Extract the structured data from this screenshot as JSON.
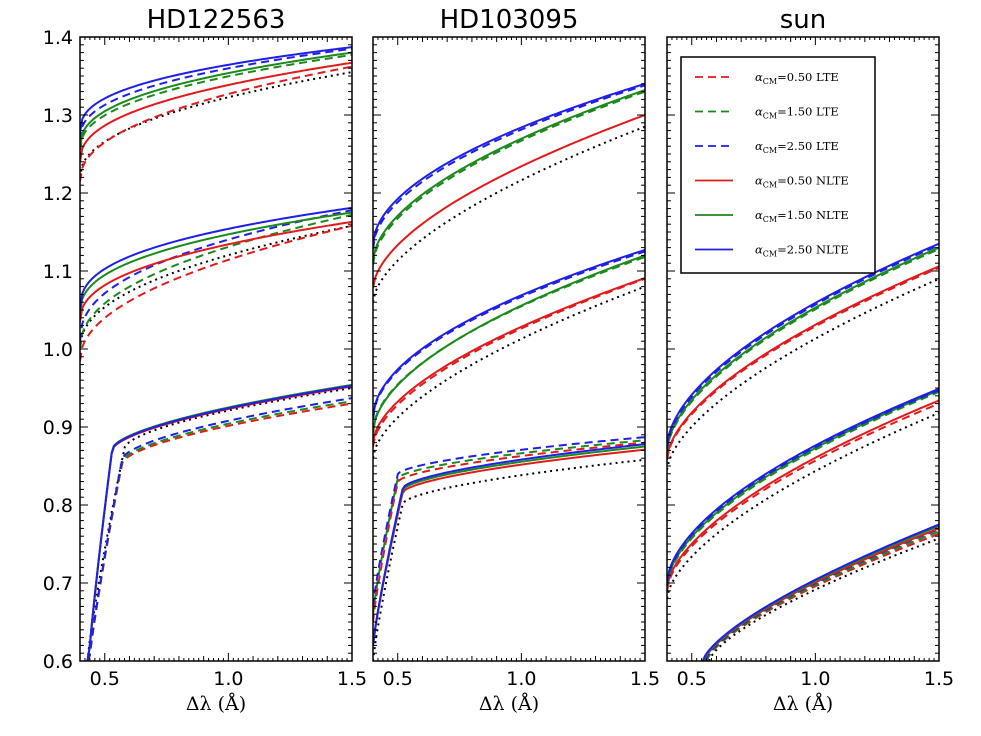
{
  "chart_data": {
    "type": "line",
    "y_tick_labels": [
      "0.6",
      "0.7",
      "0.8",
      "0.9",
      "1.0",
      "1.1",
      "1.2",
      "1.3",
      "1.4"
    ],
    "x_tick_labels": [
      "0.5",
      "1.0",
      "1.5"
    ],
    "xlabel": "Δλ (Å)",
    "xlim": [
      0.4,
      1.5
    ],
    "ylim": [
      0.6,
      1.4
    ],
    "colors": {
      "0.50": "#e31a1c",
      "1.50": "#1a8a1a",
      "2.50": "#1f1fe8",
      "reference": "#000000"
    },
    "legend": [
      {
        "alpha": "0.50",
        "kind": "LTE",
        "text": "0.50 LTE",
        "symbol": "α",
        "subscript": "CM"
      },
      {
        "alpha": "1.50",
        "kind": "LTE",
        "text": "1.50 LTE",
        "symbol": "α",
        "subscript": "CM"
      },
      {
        "alpha": "2.50",
        "kind": "LTE",
        "text": "2.50 LTE",
        "symbol": "α",
        "subscript": "CM"
      },
      {
        "alpha": "0.50",
        "kind": "NLTE",
        "text": "0.50 NLTE",
        "symbol": "α",
        "subscript": "CM"
      },
      {
        "alpha": "1.50",
        "kind": "NLTE",
        "text": "1.50 NLTE",
        "symbol": "α",
        "subscript": "CM"
      },
      {
        "alpha": "2.50",
        "kind": "NLTE",
        "text": "2.50 NLTE",
        "symbol": "α",
        "subscript": "CM"
      }
    ],
    "panels": [
      {
        "title": "HD122563",
        "groups": [
          {
            "lines": {
              "ref": {
                "start": 1.22,
                "end": 1.355,
                "k": 0.45
              },
              "0.50_LTE": {
                "start": 1.215,
                "end": 1.362,
                "k": 0.45
              },
              "1.50_LTE": {
                "start": 1.255,
                "end": 1.377,
                "k": 0.42
              },
              "2.50_LTE": {
                "start": 1.268,
                "end": 1.385,
                "k": 0.4
              },
              "0.50_NLTE": {
                "start": 1.24,
                "end": 1.367,
                "k": 0.42
              },
              "1.50_NLTE": {
                "start": 1.258,
                "end": 1.38,
                "k": 0.4
              },
              "2.50_NLTE": {
                "start": 1.277,
                "end": 1.387,
                "k": 0.38
              }
            }
          },
          {
            "lines": {
              "ref": {
                "start": 1.0,
                "end": 1.158,
                "k": 0.45
              },
              "0.50_LTE": {
                "start": 0.985,
                "end": 1.158,
                "k": 0.48
              },
              "1.50_LTE": {
                "start": 1.0,
                "end": 1.172,
                "k": 0.45
              },
              "2.50_LTE": {
                "start": 1.01,
                "end": 1.178,
                "k": 0.42
              },
              "0.50_NLTE": {
                "start": 1.035,
                "end": 1.163,
                "k": 0.42
              },
              "1.50_NLTE": {
                "start": 1.045,
                "end": 1.175,
                "k": 0.4
              },
              "2.50_NLTE": {
                "start": 1.05,
                "end": 1.181,
                "k": 0.38
              }
            }
          },
          {
            "lines": {
              "ref": {
                "start": 0.6,
                "end": 0.95,
                "k": 0.55,
                "x0": 0.43,
                "knee": 0.58
              },
              "0.50_LTE": {
                "start": 0.58,
                "end": 0.93,
                "k": 0.55,
                "x0": 0.43,
                "knee": 0.57
              },
              "1.50_LTE": {
                "start": 0.58,
                "end": 0.933,
                "k": 0.55,
                "x0": 0.43,
                "knee": 0.57
              },
              "2.50_LTE": {
                "start": 0.58,
                "end": 0.937,
                "k": 0.55,
                "x0": 0.43,
                "knee": 0.57
              },
              "0.50_NLTE": {
                "start": 0.58,
                "end": 0.952,
                "k": 0.5,
                "x0": 0.43,
                "knee": 0.53
              },
              "1.50_NLTE": {
                "start": 0.58,
                "end": 0.954,
                "k": 0.5,
                "x0": 0.43,
                "knee": 0.53
              },
              "2.50_NLTE": {
                "start": 0.58,
                "end": 0.953,
                "k": 0.5,
                "x0": 0.43,
                "knee": 0.53
              }
            }
          }
        ]
      },
      {
        "title": "HD103095",
        "groups": [
          {
            "lines": {
              "ref": {
                "start": 1.06,
                "end": 1.285,
                "k": 0.6
              },
              "0.50_NLTE": {
                "start": 1.078,
                "end": 1.3,
                "k": 0.58
              },
              "1.50_LTE": {
                "start": 1.108,
                "end": 1.33,
                "k": 0.55
              },
              "1.50_NLTE": {
                "start": 1.112,
                "end": 1.332,
                "k": 0.55
              },
              "2.50_LTE": {
                "start": 1.128,
                "end": 1.338,
                "k": 0.52
              },
              "2.50_NLTE": {
                "start": 1.133,
                "end": 1.34,
                "k": 0.52
              }
            }
          },
          {
            "lines": {
              "ref": {
                "start": 0.86,
                "end": 1.08,
                "k": 0.6
              },
              "0.50_LTE": {
                "start": 0.875,
                "end": 1.09,
                "k": 0.58
              },
              "0.50_NLTE": {
                "start": 0.88,
                "end": 1.091,
                "k": 0.58
              },
              "1.50_LTE": {
                "start": 0.895,
                "end": 1.118,
                "k": 0.55
              },
              "1.50_NLTE": {
                "start": 0.893,
                "end": 1.12,
                "k": 0.55
              },
              "2.50_LTE": {
                "start": 0.91,
                "end": 1.125,
                "k": 0.52
              },
              "2.50_NLTE": {
                "start": 0.912,
                "end": 1.127,
                "k": 0.52
              }
            }
          },
          {
            "lines": {
              "ref": {
                "start": 0.6,
                "end": 0.858,
                "k": 0.58,
                "x0": 0.4,
                "knee": 0.52
              },
              "0.50_LTE": {
                "start": 0.65,
                "end": 0.88,
                "k": 0.55,
                "x0": 0.4,
                "knee": 0.5
              },
              "1.50_LTE": {
                "start": 0.66,
                "end": 0.883,
                "k": 0.55,
                "x0": 0.4,
                "knee": 0.5
              },
              "2.50_LTE": {
                "start": 0.67,
                "end": 0.887,
                "k": 0.55,
                "x0": 0.4,
                "knee": 0.5
              },
              "0.50_NLTE": {
                "start": 0.62,
                "end": 0.871,
                "k": 0.55,
                "x0": 0.4,
                "knee": 0.52
              },
              "1.50_NLTE": {
                "start": 0.62,
                "end": 0.875,
                "k": 0.55,
                "x0": 0.4,
                "knee": 0.52
              },
              "2.50_NLTE": {
                "start": 0.62,
                "end": 0.878,
                "k": 0.55,
                "x0": 0.4,
                "knee": 0.52
              }
            }
          }
        ]
      },
      {
        "title": "sun",
        "groups": [
          {
            "lines": {
              "ref": {
                "start": 0.845,
                "end": 1.09,
                "k": 0.62
              },
              "0.50_LTE": {
                "start": 0.858,
                "end": 1.104,
                "k": 0.6
              },
              "0.50_NLTE": {
                "start": 0.86,
                "end": 1.106,
                "k": 0.6
              },
              "1.50_LTE": {
                "start": 0.868,
                "end": 1.128,
                "k": 0.58
              },
              "1.50_NLTE": {
                "start": 0.87,
                "end": 1.13,
                "k": 0.58
              },
              "2.50_LTE": {
                "start": 0.872,
                "end": 1.133,
                "k": 0.57
              },
              "2.50_NLTE": {
                "start": 0.875,
                "end": 1.135,
                "k": 0.57
              }
            }
          },
          {
            "lines": {
              "ref": {
                "start": 0.68,
                "end": 0.918,
                "k": 0.62
              },
              "0.50_LTE": {
                "start": 0.69,
                "end": 0.93,
                "k": 0.6
              },
              "0.50_NLTE": {
                "start": 0.693,
                "end": 0.934,
                "k": 0.6
              },
              "1.50_LTE": {
                "start": 0.695,
                "end": 0.945,
                "k": 0.58
              },
              "1.50_NLTE": {
                "start": 0.697,
                "end": 0.947,
                "k": 0.58
              },
              "2.50_LTE": {
                "start": 0.698,
                "end": 0.947,
                "k": 0.57
              },
              "2.50_NLTE": {
                "start": 0.7,
                "end": 0.949,
                "k": 0.57
              }
            }
          },
          {
            "lines": {
              "ref": {
                "start": 0.6,
                "end": 0.757,
                "k": 0.7,
                "x0": 0.57
              },
              "0.50_LTE": {
                "start": 0.6,
                "end": 0.763,
                "k": 0.7,
                "x0": 0.56
              },
              "1.50_LTE": {
                "start": 0.6,
                "end": 0.766,
                "k": 0.7,
                "x0": 0.56
              },
              "2.50_LTE": {
                "start": 0.6,
                "end": 0.769,
                "k": 0.7,
                "x0": 0.555
              },
              "0.50_NLTE": {
                "start": 0.6,
                "end": 0.77,
                "k": 0.7,
                "x0": 0.55
              },
              "1.50_NLTE": {
                "start": 0.6,
                "end": 0.773,
                "k": 0.7,
                "x0": 0.548
              },
              "2.50_NLTE": {
                "start": 0.6,
                "end": 0.775,
                "k": 0.7,
                "x0": 0.545
              }
            }
          }
        ]
      }
    ]
  }
}
